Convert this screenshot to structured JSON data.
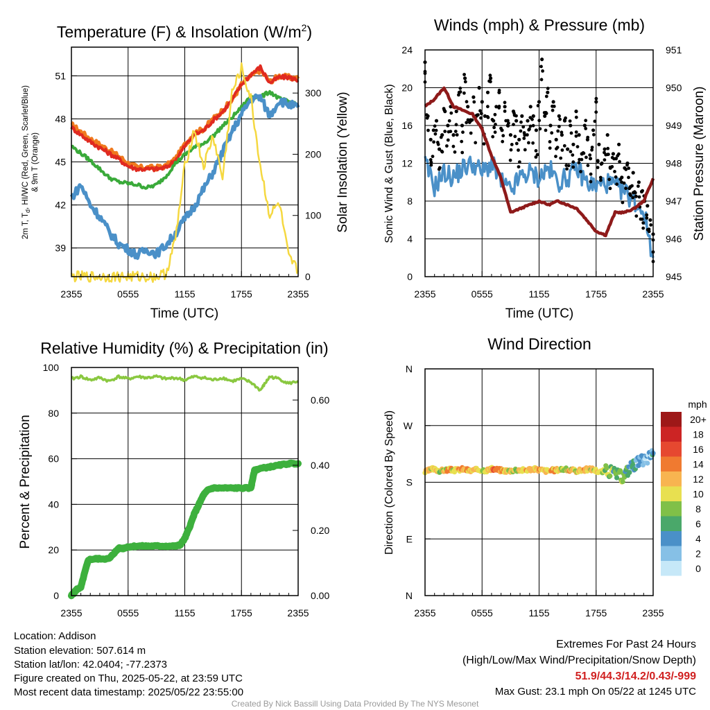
{
  "chart_data": [
    {
      "type": "line",
      "title": "Temperature (F) & Insolation (W/m²)",
      "title_parts": {
        "main": "Temperature (F) & Insolation (W/m",
        "sup": "2",
        "close": ")"
      },
      "xlabel": "Time (UTC)",
      "ylabel_left": "2m T, Td, HI/WC (Red, Green, Scarlet/Blue) & 9m T (Orange)",
      "ylabel_left_parts": {
        "pre": "2m T, T",
        "sub": "d",
        "post": ", HI/WC (Red, Green, Scarlet/Blue)",
        "line2": "& 9m T (Orange)"
      },
      "ylabel_right": "Solar Insolation (Yellow)",
      "x_ticks": [
        "2355",
        "0555",
        "1155",
        "1755",
        "2355"
      ],
      "ylim_left": [
        37,
        53
      ],
      "y_ticks_left": [
        "39",
        "42",
        "45",
        "48",
        "51"
      ],
      "ylim_right": [
        0,
        375
      ],
      "y_ticks_right": [
        "0",
        "100",
        "200",
        "300"
      ],
      "hours": [
        0,
        1,
        2,
        3,
        4,
        5,
        6,
        7,
        8,
        9,
        10,
        11,
        12,
        13,
        14,
        15,
        16,
        17,
        18,
        19,
        20,
        21,
        22,
        23,
        24
      ],
      "series": [
        {
          "color": "#f07a1e",
          "values": [
            47.6,
            47.1,
            46.6,
            46.2,
            45.8,
            45.4,
            44.9,
            44.6,
            44.6,
            44.6,
            44.7,
            45.2,
            46.2,
            47.0,
            47.3,
            48.0,
            48.6,
            49.3,
            50.4,
            51.0,
            51.4,
            50.6,
            51.0,
            50.9,
            50.8
          ]
        },
        {
          "color": "#e02a20",
          "values": [
            47.4,
            46.9,
            46.4,
            46.0,
            45.6,
            45.2,
            44.7,
            44.5,
            44.5,
            44.5,
            44.6,
            45.1,
            46.1,
            46.9,
            47.2,
            47.9,
            48.5,
            49.3,
            50.4,
            51.1,
            51.6,
            50.5,
            50.9,
            50.9,
            50.7
          ]
        },
        {
          "color": "#3aaa3a",
          "values": [
            46.1,
            45.6,
            45.1,
            44.5,
            43.9,
            43.6,
            43.5,
            43.4,
            43.2,
            43.4,
            44.0,
            44.9,
            45.5,
            46.0,
            46.3,
            46.8,
            47.5,
            48.1,
            48.8,
            49.6,
            49.5,
            49.9,
            49.4,
            49.2,
            49.0
          ]
        },
        {
          "color": "#4a90c8",
          "values": [
            42.5,
            43.4,
            42.0,
            41.2,
            40.1,
            39.3,
            38.9,
            38.5,
            38.9,
            38.6,
            39.2,
            40.0,
            41.0,
            41.9,
            43.1,
            44.3,
            45.7,
            47.1,
            48.3,
            49.4,
            49.5,
            48.2,
            49.3,
            49.0,
            48.8
          ]
        },
        {
          "color": "#f5d840",
          "axis": "right",
          "values": [
            0,
            0,
            0,
            0,
            0,
            0,
            0,
            0,
            0,
            0,
            5,
            60,
            180,
            240,
            180,
            230,
            160,
            300,
            340,
            290,
            180,
            100,
            120,
            30,
            10
          ]
        }
      ]
    },
    {
      "type": "line",
      "title": "Winds (mph) & Pressure (mb)",
      "xlabel": "Time (UTC)",
      "ylabel_left": "Sonic Wind & Gust (Blue, Black)",
      "ylabel_right": "Station Pressure (Maroon)",
      "x_ticks": [
        "2355",
        "0555",
        "1155",
        "1755",
        "2355"
      ],
      "ylim_left": [
        0,
        24
      ],
      "y_ticks_left": [
        "0",
        "4",
        "8",
        "12",
        "16",
        "20",
        "24"
      ],
      "ylim_right": [
        945,
        951
      ],
      "y_ticks_right": [
        "945",
        "946",
        "947",
        "948",
        "949",
        "950",
        "951"
      ],
      "hours": [
        0,
        1,
        2,
        3,
        4,
        5,
        6,
        7,
        8,
        9,
        10,
        11,
        12,
        13,
        14,
        15,
        16,
        17,
        18,
        19,
        20,
        21,
        22,
        23,
        24
      ],
      "series": [
        {
          "color": "#4a90c8",
          "values": [
            12.0,
            9.5,
            11.0,
            10.5,
            11.5,
            12.0,
            11.0,
            12.0,
            10.0,
            9.0,
            10.5,
            11.0,
            10.5,
            11.5,
            10.0,
            10.5,
            11.5,
            10.0,
            9.5,
            10.0,
            9.5,
            9.0,
            8.0,
            7.0,
            2.0
          ]
        },
        {
          "color": "#8e1a1a",
          "axis": "right",
          "values": [
            949.5,
            949.7,
            950.0,
            949.5,
            949.4,
            949.3,
            948.9,
            948.2,
            947.6,
            946.7,
            946.8,
            946.9,
            947.0,
            946.9,
            947.0,
            946.9,
            946.8,
            946.5,
            946.2,
            946.1,
            946.7,
            946.7,
            946.8,
            947.0,
            947.6
          ]
        }
      ],
      "gusts": [
        [
          0.0,
          22.7
        ],
        [
          0.3,
          17.0
        ],
        [
          0.6,
          14.5
        ],
        [
          0.9,
          15.5
        ],
        [
          1.2,
          16.5
        ],
        [
          1.5,
          13.5
        ],
        [
          1.8,
          15.0
        ],
        [
          2.1,
          17.5
        ],
        [
          2.4,
          16.0
        ],
        [
          2.7,
          18.0
        ],
        [
          3.0,
          15.0
        ],
        [
          3.3,
          17.5
        ],
        [
          3.6,
          19.5
        ],
        [
          3.9,
          16.0
        ],
        [
          4.2,
          21.0
        ],
        [
          4.5,
          18.0
        ],
        [
          4.8,
          16.5
        ],
        [
          5.1,
          19.0
        ],
        [
          5.4,
          17.0
        ],
        [
          5.7,
          20.0
        ],
        [
          6.0,
          18.5
        ],
        [
          6.3,
          17.0
        ],
        [
          6.6,
          19.5
        ],
        [
          6.9,
          21.0
        ],
        [
          7.2,
          16.5
        ],
        [
          7.5,
          18.0
        ],
        [
          7.8,
          19.5
        ],
        [
          8.1,
          15.5
        ],
        [
          8.4,
          18.0
        ],
        [
          8.7,
          16.0
        ],
        [
          9.0,
          15.0
        ],
        [
          9.3,
          17.5
        ],
        [
          9.6,
          16.5
        ],
        [
          9.9,
          14.5
        ],
        [
          10.2,
          17.0
        ],
        [
          10.5,
          15.0
        ],
        [
          10.8,
          16.5
        ],
        [
          11.1,
          18.0
        ],
        [
          11.4,
          17.0
        ],
        [
          11.7,
          15.5
        ],
        [
          12.0,
          18.5
        ],
        [
          12.3,
          23.0
        ],
        [
          12.6,
          17.0
        ],
        [
          12.9,
          19.5
        ],
        [
          13.2,
          16.0
        ],
        [
          13.5,
          18.5
        ],
        [
          13.8,
          14.5
        ],
        [
          14.1,
          17.0
        ],
        [
          14.4,
          15.0
        ],
        [
          14.7,
          16.5
        ],
        [
          15.0,
          13.5
        ],
        [
          15.3,
          16.0
        ],
        [
          15.6,
          14.0
        ],
        [
          15.9,
          17.5
        ],
        [
          16.2,
          15.0
        ],
        [
          16.5,
          13.0
        ],
        [
          16.8,
          16.0
        ],
        [
          17.1,
          14.5
        ],
        [
          17.4,
          12.5
        ],
        [
          17.7,
          15.5
        ],
        [
          18.0,
          18.5
        ],
        [
          18.3,
          14.0
        ],
        [
          18.6,
          12.0
        ],
        [
          18.9,
          13.5
        ],
        [
          19.2,
          15.0
        ],
        [
          19.5,
          11.5
        ],
        [
          19.8,
          13.0
        ],
        [
          20.1,
          12.5
        ],
        [
          20.4,
          14.0
        ],
        [
          20.7,
          10.5
        ],
        [
          21.0,
          11.5
        ],
        [
          21.3,
          12.0
        ],
        [
          21.6,
          9.5
        ],
        [
          21.9,
          11.0
        ],
        [
          22.2,
          8.5
        ],
        [
          22.5,
          10.0
        ],
        [
          22.8,
          9.0
        ],
        [
          23.1,
          8.0
        ],
        [
          23.4,
          7.5
        ],
        [
          23.7,
          6.0
        ],
        [
          24.0,
          4.5
        ]
      ]
    },
    {
      "type": "line",
      "title": "Relative Humidity (%) & Precipitation (in)",
      "ylabel_left": "Percent & Precipitation",
      "x_ticks": [
        "2355",
        "0555",
        "1155",
        "1755",
        "2355"
      ],
      "ylim_left": [
        0,
        100
      ],
      "y_ticks_left": [
        "0",
        "20",
        "40",
        "60",
        "80",
        "100"
      ],
      "ylim_right": [
        0,
        0.7
      ],
      "y_ticks_right": [
        "0.00",
        "0.20",
        "0.40",
        "0.60"
      ],
      "hours": [
        0,
        0.3,
        0.6,
        1,
        1.4,
        1.8,
        2.5,
        3,
        4,
        4.5,
        5,
        5.5,
        6,
        7,
        8,
        9,
        10,
        11,
        11.5,
        12,
        12.5,
        13,
        13.5,
        14,
        14.5,
        15,
        16,
        17,
        18,
        19,
        19.2,
        19.4,
        20,
        21,
        22,
        23,
        24
      ],
      "series": [
        {
          "color": "#3db03d",
          "axis": "right",
          "values": [
            0.0,
            0.01,
            0.02,
            0.025,
            0.07,
            0.11,
            0.113,
            0.113,
            0.113,
            0.13,
            0.145,
            0.145,
            0.15,
            0.152,
            0.152,
            0.152,
            0.152,
            0.152,
            0.155,
            0.175,
            0.21,
            0.25,
            0.28,
            0.31,
            0.325,
            0.33,
            0.33,
            0.33,
            0.33,
            0.33,
            0.36,
            0.385,
            0.39,
            0.395,
            0.4,
            0.405,
            0.405
          ]
        }
      ],
      "rh": {
        "color": "#8ac840",
        "hours": [
          0,
          1,
          2,
          3,
          4,
          5,
          6,
          7,
          8,
          9,
          10,
          11,
          12,
          13,
          14,
          15,
          16,
          17,
          18,
          19,
          20,
          20.5,
          21,
          22,
          23,
          24
        ],
        "values": [
          95,
          96,
          94.5,
          95.5,
          94,
          96,
          95,
          96,
          95.5,
          96,
          95,
          95.5,
          94.5,
          96,
          95.5,
          94.5,
          95.5,
          94,
          95,
          93.5,
          90,
          93,
          96,
          95,
          93,
          94
        ]
      }
    },
    {
      "type": "scatter",
      "title": "Wind Direction",
      "ylabel_left": "Direction (Colored By Speed)",
      "x_ticks": [
        "2355",
        "0555",
        "1155",
        "1755",
        "2355"
      ],
      "y_ticks_left": [
        "N",
        "E",
        "S",
        "W",
        "N"
      ],
      "ylim_left": [
        0,
        360
      ],
      "colorbar": {
        "title": "mph",
        "labels": [
          "0",
          "2",
          "4",
          "6",
          "8",
          "10",
          "12",
          "14",
          "16",
          "18",
          "20+"
        ],
        "colors": [
          "#c6e8f8",
          "#86c0e6",
          "#4a90c8",
          "#4aa86a",
          "#80c048",
          "#e8e050",
          "#f8b450",
          "#f07a30",
          "#e64830",
          "#cc2424",
          "#9e1818"
        ]
      },
      "points_note": "wind direction approximately 200 degrees throughout, colored by speed",
      "points_hours": [
        0,
        0.8,
        1.6,
        2.4,
        3.2,
        4.0,
        4.8,
        5.6,
        6.4,
        7.2,
        8.0,
        8.8,
        9.6,
        10.4,
        11.2,
        12.0,
        12.8,
        13.6,
        14.4,
        15.2,
        16.0,
        16.8,
        17.6,
        18.4,
        19.2,
        20.0,
        20.8,
        21.6,
        22.2,
        22.8,
        23.4,
        24.0
      ],
      "points_dir": [
        196,
        201,
        198,
        200,
        199,
        201,
        198,
        200,
        199,
        201,
        199,
        198,
        200,
        199,
        201,
        200,
        198,
        199,
        201,
        199,
        198,
        200,
        201,
        196,
        199,
        194,
        188,
        205,
        210,
        214,
        218,
        226
      ],
      "points_speed": [
        12,
        11,
        9,
        12,
        10,
        13,
        11,
        12,
        10,
        14,
        12,
        11,
        9,
        12,
        10,
        13,
        11,
        12,
        9,
        11,
        10,
        12,
        11,
        9,
        8,
        6,
        7,
        5,
        4,
        3,
        2,
        3
      ]
    }
  ],
  "footer": {
    "left_lines": [
      "Location: Addison",
      "Station elevation: 507.614 m",
      "Station lat/lon: 42.0404; -77.2373",
      "Figure created on Thu, 2025-05-22, at 23:59 UTC",
      "Most recent data timestamp: 2025/05/22 23:55:00"
    ],
    "extremes_title": "Extremes For Past 24 Hours",
    "extremes_subtitle": "(High/Low/Max Wind/Precipitation/Snow Depth)",
    "extremes_values": "51.9/44.3/14.2/0.43/-999",
    "max_gust": "Max Gust: 23.1 mph On 05/22 at 1245 UTC",
    "credit": "Created By Nick Bassill Using Data Provided By The NYS Mesonet"
  },
  "colors": {
    "extremes": "#d02020"
  }
}
